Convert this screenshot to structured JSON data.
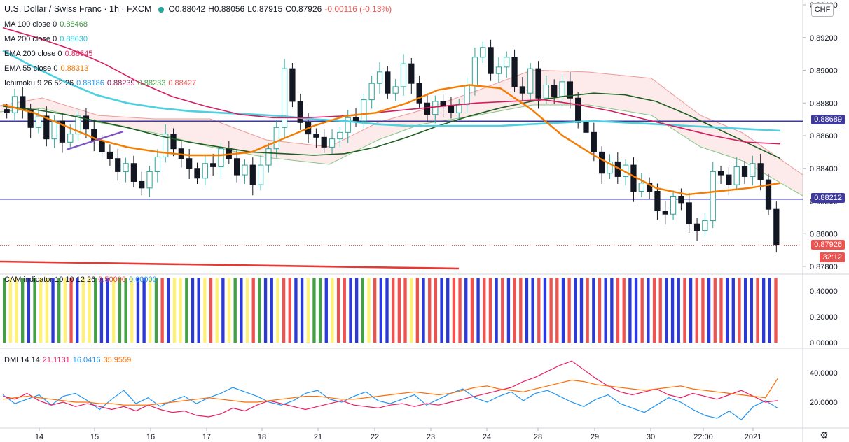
{
  "header": {
    "symbol": "U.S. Dollar / Swiss Franc · 1h · FXCM",
    "open": "O0.88042",
    "high": "H0.88056",
    "low": "L0.87915",
    "close": "C0.87926",
    "change": "-0.00116 (-0.13%)"
  },
  "currency_chip": "CHF",
  "indicators": [
    {
      "label": "MA 100 close 0",
      "values": [
        "0.88468"
      ],
      "colors": [
        "#388e3c"
      ]
    },
    {
      "label": "MA 200 close 0",
      "values": [
        "0.88630"
      ],
      "colors": [
        "#26c6da"
      ]
    },
    {
      "label": "EMA 200 close 0",
      "values": [
        "0.88545"
      ],
      "colors": [
        "#e91e63"
      ]
    },
    {
      "label": "EMA 55 close 0",
      "values": [
        "0.88313"
      ],
      "colors": [
        "#f57c00"
      ]
    },
    {
      "label": "Ichimoku 9 26 52 26",
      "values": [
        "0.88186",
        "0.88239",
        "0.88233",
        "0.88427"
      ],
      "colors": [
        "#2196f3",
        "#880e4f",
        "#43a047",
        "#ef5350"
      ]
    }
  ],
  "cam": {
    "label": "CAM indicator 10 10 12 26",
    "values": [
      "0.50000",
      "0.00000"
    ],
    "colors": [
      "#f44336",
      "#2196f3"
    ]
  },
  "dmi": {
    "label": "DMI 14 14",
    "values": [
      "21.1131",
      "16.0416",
      "35.9559"
    ],
    "colors": [
      "#e91e63",
      "#2196f3",
      "#ff6d00"
    ]
  },
  "tags": {
    "line_upper": "0.88689",
    "line_lower": "0.88212",
    "last_price": "0.87926",
    "countdown": "32:12"
  },
  "chart_data": [
    {
      "type": "candlestick",
      "symbol": "USDCHF",
      "timeframe": "1h",
      "x_ticks": [
        "14",
        "15",
        "16",
        "17",
        "18",
        "21",
        "22",
        "23",
        "24",
        "28",
        "29",
        "30",
        "22:00",
        "2021"
      ],
      "y_ticks": [
        "0.87800",
        "0.88000",
        "0.88200",
        "0.88400",
        "0.88600",
        "0.88800",
        "0.89000",
        "0.89200",
        "0.89400"
      ],
      "ylim": [
        0.8775,
        0.8942
      ],
      "horizontal_lines": [
        0.88689,
        0.88212
      ],
      "last_price": 0.87926,
      "closes": [
        0.8874,
        0.8884,
        0.8876,
        0.8865,
        0.8872,
        0.8858,
        0.8869,
        0.8856,
        0.8861,
        0.8872,
        0.8864,
        0.8857,
        0.885,
        0.8846,
        0.8838,
        0.8843,
        0.8832,
        0.8828,
        0.8838,
        0.8847,
        0.8861,
        0.8852,
        0.8846,
        0.884,
        0.8834,
        0.8843,
        0.8841,
        0.8852,
        0.8846,
        0.8836,
        0.8842,
        0.883,
        0.8842,
        0.8852,
        0.8865,
        0.8901,
        0.8881,
        0.8868,
        0.8861,
        0.8859,
        0.8853,
        0.8858,
        0.8862,
        0.8871,
        0.8869,
        0.8882,
        0.8892,
        0.8899,
        0.8886,
        0.889,
        0.8904,
        0.8892,
        0.888,
        0.8873,
        0.8881,
        0.8878,
        0.8874,
        0.8879,
        0.8891,
        0.8908,
        0.8914,
        0.8898,
        0.8902,
        0.8908,
        0.889,
        0.8886,
        0.8901,
        0.8883,
        0.8891,
        0.8884,
        0.8893,
        0.8883,
        0.8868,
        0.8862,
        0.885,
        0.8837,
        0.8844,
        0.8835,
        0.8842,
        0.8826,
        0.8831,
        0.8826,
        0.8814,
        0.8812,
        0.8823,
        0.8819,
        0.8806,
        0.8802,
        0.8808,
        0.8838,
        0.8836,
        0.883,
        0.8841,
        0.8835,
        0.8843,
        0.8833,
        0.8815,
        0.8793
      ],
      "series": [
        {
          "name": "MA 100 close 0",
          "values": [
            0.8878,
            0.8876,
            0.8873,
            0.8869,
            0.8865,
            0.886,
            0.8856,
            0.8853,
            0.885,
            0.8849,
            0.8848,
            0.8849,
            0.8853,
            0.8859,
            0.8866,
            0.8872,
            0.8877,
            0.8881,
            0.8884,
            0.8886,
            0.8885,
            0.8881,
            0.8873,
            0.8864,
            0.8855,
            0.8846
          ]
        },
        {
          "name": "MA 200 close 0",
          "values": [
            0.8912,
            0.8902,
            0.8893,
            0.8885,
            0.888,
            0.8877,
            0.8875,
            0.8874,
            0.8873,
            0.8872,
            0.887,
            0.8869,
            0.8867,
            0.8866,
            0.8866,
            0.8866,
            0.8866,
            0.8867,
            0.8868,
            0.8869,
            0.8868,
            0.8867,
            0.8866,
            0.8865,
            0.8864,
            0.8863
          ]
        },
        {
          "name": "EMA 200 close 0",
          "values": [
            0.8926,
            0.892,
            0.8913,
            0.8904,
            0.8893,
            0.8884,
            0.8878,
            0.8873,
            0.8871,
            0.8871,
            0.8872,
            0.8874,
            0.8876,
            0.8878,
            0.888,
            0.8881,
            0.8882,
            0.8879,
            0.8875,
            0.887,
            0.8865,
            0.886,
            0.8856,
            0.8855
          ]
        },
        {
          "name": "EMA 55 close 0",
          "values": [
            0.8879,
            0.8874,
            0.8866,
            0.8858,
            0.8853,
            0.885,
            0.8848,
            0.8848,
            0.885,
            0.8858,
            0.8866,
            0.8872,
            0.8874,
            0.888,
            0.8888,
            0.8891,
            0.8889,
            0.8876,
            0.886,
            0.8848,
            0.8838,
            0.8828,
            0.8824,
            0.8826,
            0.8828,
            0.8831
          ]
        }
      ]
    },
    {
      "type": "bar",
      "title": "CAM indicator 10 10 12 26",
      "y_ticks": [
        "0.00000",
        "0.20000",
        "0.40000"
      ],
      "ylim": [
        0,
        0.55
      ],
      "value": 0.5,
      "color_sequence": [
        "g",
        "y",
        "y",
        "g",
        "b",
        "g",
        "y",
        "y",
        "b",
        "g",
        "y",
        "r",
        "b",
        "y",
        "y",
        "g",
        "b",
        "b",
        "y",
        "g",
        "g",
        "y",
        "b",
        "b",
        "y",
        "g",
        "r",
        "b",
        "y",
        "y",
        "g",
        "b",
        "b",
        "y",
        "r",
        "y",
        "b",
        "y",
        "g",
        "b",
        "y",
        "r",
        "g",
        "b",
        "b",
        "y",
        "r",
        "r",
        "b",
        "b",
        "y",
        "g",
        "g",
        "b",
        "y",
        "r",
        "r",
        "b",
        "b",
        "g",
        "y",
        "r",
        "b",
        "b",
        "r",
        "r",
        "r",
        "y",
        "r",
        "b",
        "r",
        "r",
        "b",
        "b",
        "r",
        "r",
        "b",
        "r",
        "b",
        "r",
        "r",
        "b",
        "r",
        "b",
        "r",
        "r",
        "b",
        "b",
        "r",
        "b",
        "r",
        "r",
        "b",
        "r",
        "b",
        "b",
        "r",
        "b",
        "r",
        "b",
        "b",
        "r",
        "r",
        "b",
        "b",
        "r",
        "b",
        "r",
        "r",
        "b",
        "b",
        "b",
        "r",
        "b",
        "r",
        "r",
        "b",
        "r",
        "r",
        "b",
        "b",
        "r",
        "b",
        "b",
        "r",
        "b",
        "b",
        "r"
      ]
    },
    {
      "type": "line",
      "title": "DMI 14 14",
      "y_ticks": [
        "20.0000",
        "40.0000"
      ],
      "ylim": [
        5,
        52
      ],
      "series": [
        {
          "name": "DI+",
          "values": [
            25,
            19,
            22,
            25,
            18,
            24,
            26,
            21,
            15,
            22,
            28,
            19,
            23,
            17,
            21,
            24,
            19,
            23,
            26,
            30,
            27,
            24,
            20,
            18,
            21,
            26,
            28,
            22,
            20,
            24,
            27,
            21,
            19,
            22,
            25,
            18,
            22,
            26,
            29,
            23,
            20,
            24,
            27,
            21,
            26,
            28,
            24,
            20,
            17,
            22,
            25,
            19,
            16,
            13,
            18,
            23,
            20,
            15,
            11,
            9,
            14,
            8,
            17,
            21,
            16
          ]
        },
        {
          "name": "DI-",
          "values": [
            24,
            22,
            26,
            21,
            18,
            20,
            17,
            19,
            17,
            15,
            17,
            14,
            18,
            15,
            13,
            14,
            11,
            10,
            12,
            16,
            14,
            18,
            21,
            19,
            17,
            15,
            17,
            19,
            21,
            18,
            17,
            16,
            18,
            19,
            17,
            19,
            18,
            20,
            22,
            24,
            26,
            28,
            30,
            34,
            37,
            41,
            45,
            48,
            42,
            36,
            31,
            27,
            25,
            27,
            29,
            25,
            23,
            26,
            24,
            22,
            25,
            28,
            24,
            20,
            21
          ]
        },
        {
          "name": "ADX",
          "values": [
            22,
            23,
            24,
            23,
            22,
            21,
            20,
            20,
            19,
            19,
            18,
            18,
            18,
            19,
            20,
            21,
            22,
            23,
            22,
            21,
            20,
            20,
            21,
            22,
            23,
            24,
            24,
            23,
            22,
            22,
            23,
            24,
            25,
            26,
            27,
            26,
            25,
            26,
            28,
            30,
            31,
            29,
            28,
            27,
            29,
            31,
            33,
            35,
            34,
            32,
            31,
            30,
            29,
            28,
            29,
            30,
            31,
            29,
            28,
            27,
            26,
            25,
            24,
            23,
            36
          ]
        }
      ]
    }
  ]
}
